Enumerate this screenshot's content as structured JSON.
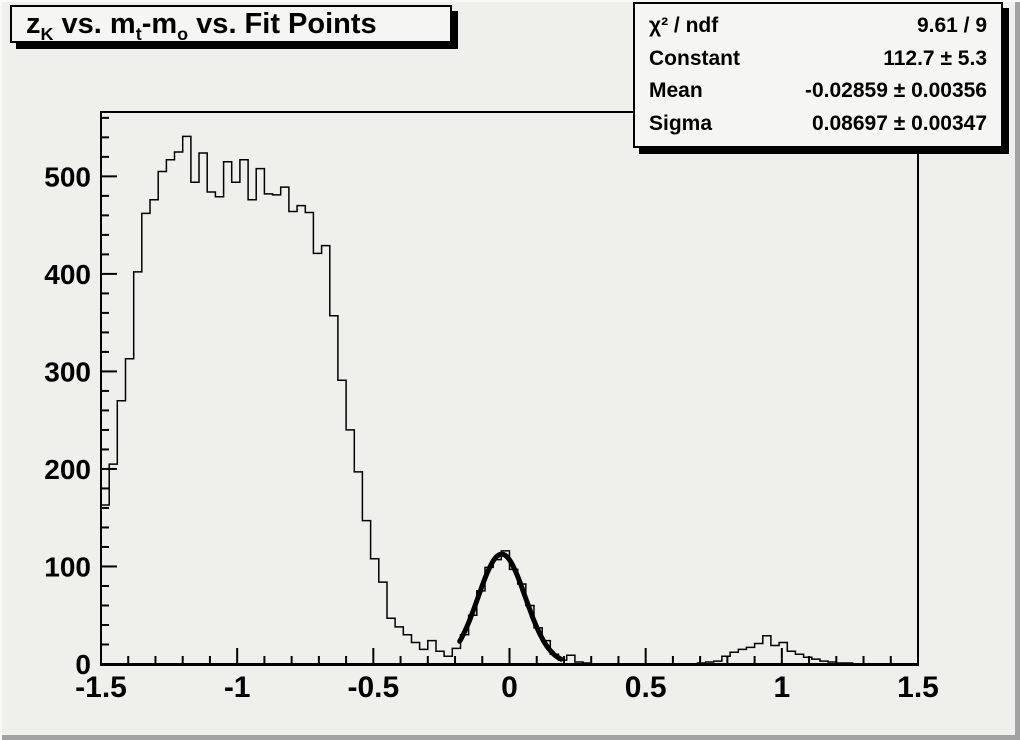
{
  "title": {
    "text": "z_K vs. m_t-m_o vs. Fit Points",
    "segments": [
      {
        "t": "z"
      },
      {
        "t": "K",
        "sub": true
      },
      {
        "t": " vs. m"
      },
      {
        "t": "t",
        "sub": true
      },
      {
        "t": "-m"
      },
      {
        "t": "o",
        "sub": true
      },
      {
        "t": " vs. Fit Points"
      }
    ]
  },
  "stats_box": {
    "rows": [
      {
        "label": "χ² / ndf",
        "value": "9.61 / 9"
      },
      {
        "label": "Constant",
        "value": "112.7 ± 5.3"
      },
      {
        "label": "Mean",
        "value": "-0.02859 ± 0.00356"
      },
      {
        "label": "Sigma",
        "value": "0.08697 ± 0.00347"
      }
    ]
  },
  "colors": {
    "canvas_bg": "#efefec",
    "box_bg": "#f5f5f3",
    "line": "#000000",
    "frame": "#000000",
    "border_shadow": "#a2a2a2"
  },
  "chart_data": {
    "type": "bar",
    "subtype": "step-histogram",
    "title": "z_K vs. m_t-m_o vs. Fit Points",
    "xlabel": "",
    "ylabel": "",
    "xlim": [
      -1.5,
      1.5
    ],
    "ylim": [
      0,
      566
    ],
    "grid": false,
    "legend": false,
    "bin_start": -1.5,
    "bin_width": 0.03,
    "values": [
      163,
      205,
      270,
      313,
      402,
      462,
      476,
      505,
      517,
      525,
      541,
      494,
      524,
      484,
      479,
      515,
      494,
      517,
      476,
      508,
      482,
      481,
      489,
      464,
      470,
      463,
      421,
      429,
      357,
      291,
      240,
      197,
      147,
      108,
      84,
      47,
      38,
      30,
      22,
      15,
      24,
      13,
      8,
      16,
      30,
      50,
      75,
      99,
      107,
      116,
      97,
      82,
      60,
      37,
      24,
      10,
      4,
      9,
      2,
      1,
      0,
      0,
      0,
      0,
      0,
      0,
      0,
      0,
      0,
      0,
      0,
      0,
      0,
      1,
      2,
      3,
      8,
      12,
      15,
      17,
      21,
      29,
      19,
      22,
      13,
      10,
      7,
      5,
      3,
      2,
      1,
      1,
      0,
      0,
      0,
      0,
      0,
      0,
      0,
      0
    ],
    "x_major_ticks": [
      -1.5,
      -1,
      -0.5,
      0,
      0.5,
      1,
      1.5
    ],
    "x_major_labels": [
      "-1.5",
      "-1",
      "-0.5",
      "0",
      "0.5",
      "1",
      "1.5"
    ],
    "x_minor_step": 0.1,
    "y_major_ticks": [
      0,
      100,
      200,
      300,
      400,
      500
    ],
    "y_major_labels": [
      "0",
      "100",
      "200",
      "300",
      "400",
      "500"
    ],
    "y_minor_step": 20,
    "fit": {
      "type": "gaussian",
      "constant": 112.7,
      "mean": -0.02859,
      "sigma": 0.08697,
      "chi2_ndf": "9.61 / 9",
      "draw_range": [
        -0.183,
        0.19
      ]
    }
  }
}
